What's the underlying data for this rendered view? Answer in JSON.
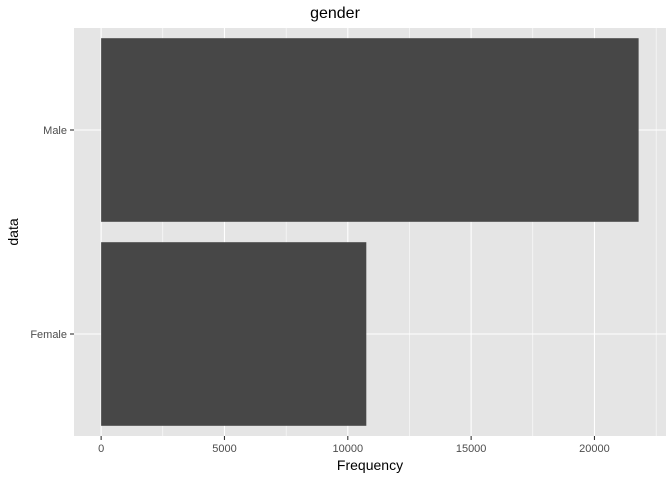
{
  "chart_data": {
    "type": "bar",
    "orientation": "horizontal",
    "title": "gender",
    "xlabel": "Frequency",
    "ylabel": "data",
    "categories": [
      "Female",
      "Male"
    ],
    "values": [
      10750,
      21790
    ],
    "xlim": [
      -1100,
      22900
    ],
    "x_ticks": [
      0,
      5000,
      10000,
      15000,
      20000
    ],
    "x_tick_labels": [
      "0",
      "5000",
      "10000",
      "15000",
      "20000"
    ],
    "grid": true,
    "legend": "none"
  },
  "colors": {
    "panel_background": "#e5e5e5",
    "grid_major": "#ffffff",
    "bar_fill": "#474747",
    "tick": "#333333"
  }
}
